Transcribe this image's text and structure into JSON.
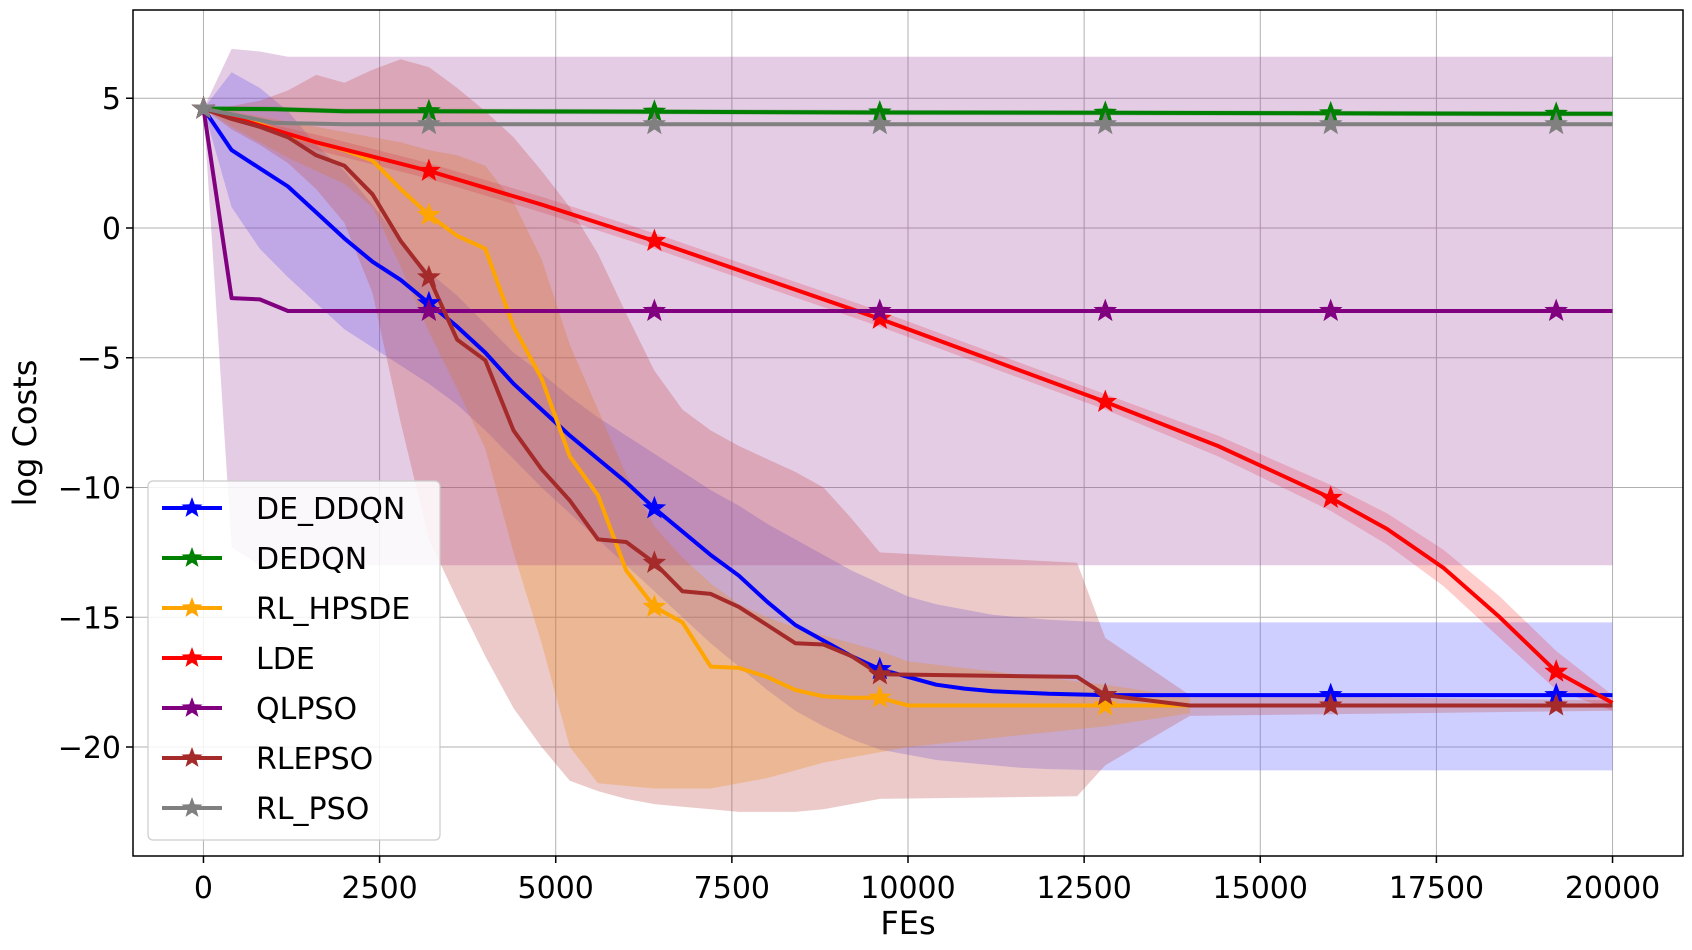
{
  "chart_data": {
    "type": "line",
    "title": "",
    "xlabel": "FEs",
    "ylabel": "log Costs",
    "xlim": [
      -1000,
      21000
    ],
    "ylim": [
      -24.2,
      8.4
    ],
    "xticks": [
      0,
      2500,
      5000,
      7500,
      10000,
      12500,
      15000,
      17500,
      20000
    ],
    "xtick_labels": [
      "0",
      "2500",
      "5000",
      "7500",
      "10000",
      "12500",
      "15000",
      "17500",
      "20000"
    ],
    "yticks": [
      5,
      0,
      -5,
      -10,
      -15,
      -20
    ],
    "ytick_labels": [
      "5",
      "0",
      "−5",
      "−10",
      "−15",
      "−20"
    ],
    "grid": true,
    "legend_position": "lower-left",
    "marker_x": [
      0,
      3200,
      6400,
      9600,
      12800,
      16000,
      19200
    ],
    "series": [
      {
        "name": "DE_DDQN",
        "color": "#0000ff",
        "band_color": "#6666ff",
        "band_opacity": 0.32,
        "x": [
          0,
          400,
          800,
          1200,
          1600,
          2000,
          2400,
          2800,
          3200,
          3600,
          4000,
          4400,
          4800,
          5200,
          5600,
          6000,
          6400,
          6800,
          7200,
          7600,
          8000,
          8400,
          8800,
          9200,
          9600,
          10000,
          10400,
          10800,
          11200,
          11600,
          12000,
          12800,
          16000,
          19200,
          20000
        ],
        "y": [
          4.6,
          3.0,
          2.3,
          1.6,
          0.6,
          -0.4,
          -1.3,
          -2.0,
          -2.9,
          -3.8,
          -4.8,
          -6.0,
          -7.0,
          -8.0,
          -8.9,
          -9.8,
          -10.8,
          -11.7,
          -12.6,
          -13.4,
          -14.4,
          -15.3,
          -15.9,
          -16.5,
          -17.0,
          -17.3,
          -17.6,
          -17.75,
          -17.85,
          -17.9,
          -17.95,
          -18.0,
          -18.0,
          -18.0,
          -18.0
        ],
        "upper": [
          4.6,
          6.0,
          5.4,
          4.5,
          3.2,
          2.2,
          0.9,
          -0.5,
          -1.7,
          -2.6,
          -3.7,
          -4.8,
          -5.6,
          -6.5,
          -7.3,
          -8.0,
          -8.7,
          -9.4,
          -10.1,
          -10.7,
          -11.4,
          -12.0,
          -12.6,
          -13.2,
          -13.7,
          -14.2,
          -14.5,
          -14.7,
          -14.9,
          -15.0,
          -15.1,
          -15.2,
          -15.2,
          -15.2,
          -15.2
        ],
        "lower": [
          4.6,
          0.8,
          -0.8,
          -1.9,
          -2.9,
          -3.9,
          -4.6,
          -5.3,
          -6.0,
          -6.8,
          -7.8,
          -8.9,
          -10.0,
          -11.0,
          -12.0,
          -13.0,
          -14.0,
          -15.0,
          -16.0,
          -16.9,
          -17.8,
          -18.6,
          -19.2,
          -19.7,
          -20.1,
          -20.3,
          -20.5,
          -20.6,
          -20.7,
          -20.8,
          -20.85,
          -20.9,
          -20.9,
          -20.9,
          -20.9
        ]
      },
      {
        "name": "DEDQN",
        "color": "#008000",
        "band_color": "#008000",
        "band_opacity": 0.25,
        "x": [
          0,
          1000,
          2000,
          3200,
          6400,
          9600,
          12800,
          16000,
          19200,
          20000
        ],
        "y": [
          4.6,
          4.58,
          4.5,
          4.5,
          4.48,
          4.45,
          4.44,
          4.42,
          4.4,
          4.4
        ],
        "upper": [
          4.7,
          4.68,
          4.6,
          4.6,
          4.58,
          4.55,
          4.54,
          4.52,
          4.5,
          4.5
        ],
        "lower": [
          4.5,
          4.48,
          4.4,
          4.4,
          4.38,
          4.35,
          4.34,
          4.32,
          4.3,
          4.3
        ]
      },
      {
        "name": "RL_HPSDE",
        "color": "#ffa500",
        "band_color": "#ffa500",
        "band_opacity": 0.3,
        "x": [
          0,
          400,
          800,
          1200,
          1600,
          2000,
          2400,
          2800,
          3200,
          3600,
          4000,
          4400,
          4800,
          5200,
          5600,
          6000,
          6400,
          6800,
          7200,
          7600,
          8000,
          8400,
          8800,
          9200,
          9600,
          10000,
          12800,
          14000
        ],
        "y": [
          4.6,
          4.3,
          4.0,
          3.6,
          3.3,
          3.0,
          2.6,
          1.5,
          0.5,
          -0.3,
          -0.8,
          -3.8,
          -5.8,
          -8.8,
          -10.3,
          -13.2,
          -14.6,
          -15.2,
          -16.9,
          -16.95,
          -17.3,
          -17.8,
          -18.05,
          -18.1,
          -18.1,
          -18.4,
          -18.4,
          -18.4
        ],
        "upper": [
          4.6,
          4.5,
          4.3,
          4.1,
          3.9,
          3.7,
          3.5,
          3.3,
          3.0,
          2.8,
          2.4,
          1.0,
          -1.2,
          -4.5,
          -7.0,
          -9.5,
          -11.5,
          -12.7,
          -13.7,
          -14.5,
          -15.0,
          -15.4,
          -15.7,
          -16.0,
          -16.3,
          -16.7,
          -17.6,
          -18.1
        ],
        "lower": [
          4.6,
          3.9,
          3.3,
          2.7,
          2.2,
          1.7,
          0.8,
          -1.5,
          -4.0,
          -6.2,
          -8.5,
          -12.5,
          -16.0,
          -20.0,
          -21.4,
          -21.5,
          -21.6,
          -21.6,
          -21.6,
          -21.4,
          -21.2,
          -20.9,
          -20.6,
          -20.4,
          -20.2,
          -20.0,
          -19.2,
          -18.7
        ]
      },
      {
        "name": "LDE",
        "color": "#ff0000",
        "band_color": "#ff0000",
        "band_opacity": 0.2,
        "x": [
          0,
          1600,
          3200,
          4800,
          6400,
          8000,
          9600,
          11200,
          12800,
          14400,
          16000,
          16800,
          17600,
          18400,
          19200,
          20000
        ],
        "y": [
          4.6,
          3.3,
          2.2,
          0.9,
          -0.5,
          -2.0,
          -3.5,
          -5.1,
          -6.7,
          -8.4,
          -10.4,
          -11.6,
          -13.1,
          -15.0,
          -17.1,
          -18.3
        ],
        "upper": [
          4.6,
          3.6,
          2.5,
          1.2,
          -0.2,
          -1.7,
          -3.2,
          -4.8,
          -6.4,
          -8.0,
          -9.9,
          -11.0,
          -12.4,
          -14.2,
          -16.3,
          -18.0
        ],
        "lower": [
          4.6,
          3.0,
          1.9,
          0.6,
          -0.8,
          -2.3,
          -3.8,
          -5.4,
          -7.0,
          -8.8,
          -10.9,
          -12.2,
          -13.8,
          -15.8,
          -17.8,
          -18.6
        ]
      },
      {
        "name": "QLPSO",
        "color": "#800080",
        "band_color": "#993399",
        "band_opacity": 0.25,
        "x": [
          0,
          400,
          800,
          1200,
          3200,
          6400,
          9600,
          12800,
          16000,
          19200,
          20000
        ],
        "y": [
          4.6,
          -2.7,
          -2.75,
          -3.2,
          -3.2,
          -3.2,
          -3.2,
          -3.2,
          -3.2,
          -3.2,
          -3.2
        ],
        "upper": [
          4.6,
          6.9,
          6.8,
          6.6,
          6.6,
          6.6,
          6.6,
          6.6,
          6.6,
          6.6,
          6.6
        ],
        "lower": [
          4.6,
          -12.3,
          -13.0,
          -13.0,
          -13.0,
          -13.0,
          -13.0,
          -13.0,
          -13.0,
          -13.0,
          -13.0
        ]
      },
      {
        "name": "RLEPSO",
        "color": "#a52a2a",
        "band_color": "#c05050",
        "band_opacity": 0.3,
        "x": [
          0,
          400,
          800,
          1200,
          1600,
          2000,
          2400,
          2800,
          3200,
          3600,
          4000,
          4400,
          4800,
          5200,
          5600,
          6000,
          6400,
          6800,
          7200,
          7600,
          8000,
          8400,
          8800,
          9200,
          9600,
          12400,
          12800,
          14000,
          20000
        ],
        "y": [
          4.6,
          4.2,
          3.9,
          3.5,
          2.8,
          2.4,
          1.3,
          -0.5,
          -1.9,
          -4.3,
          -5.1,
          -7.8,
          -9.3,
          -10.5,
          -12.0,
          -12.1,
          -12.9,
          -14.0,
          -14.1,
          -14.6,
          -15.3,
          -16.0,
          -16.05,
          -16.5,
          -17.2,
          -17.3,
          -18.0,
          -18.4,
          -18.4
        ],
        "upper": [
          4.6,
          4.7,
          4.9,
          5.3,
          5.9,
          5.6,
          6.1,
          6.5,
          6.2,
          5.4,
          4.5,
          3.5,
          2.2,
          0.8,
          -1.0,
          -3.3,
          -5.5,
          -7.0,
          -7.8,
          -8.4,
          -8.9,
          -9.4,
          -10.0,
          -11.2,
          -12.5,
          -12.9,
          -15.8,
          -18.0,
          -18.2
        ],
        "lower": [
          4.6,
          3.8,
          3.2,
          2.5,
          1.5,
          0.2,
          -2.5,
          -7.5,
          -12.0,
          -14.3,
          -16.5,
          -18.5,
          -20.0,
          -21.3,
          -21.7,
          -22.0,
          -22.2,
          -22.3,
          -22.4,
          -22.5,
          -22.5,
          -22.5,
          -22.4,
          -22.2,
          -22.0,
          -21.9,
          -20.7,
          -18.8,
          -18.6
        ]
      },
      {
        "name": "RL_PSO",
        "color": "#808080",
        "band_color": "#808080",
        "band_opacity": 0.25,
        "x": [
          0,
          1000,
          2000,
          3200,
          6400,
          9600,
          12800,
          16000,
          19200,
          20000
        ],
        "y": [
          4.6,
          4.05,
          4.0,
          4.0,
          4.0,
          4.0,
          4.0,
          4.0,
          4.0,
          4.0
        ],
        "upper": [
          4.65,
          4.12,
          4.07,
          4.07,
          4.07,
          4.07,
          4.07,
          4.07,
          4.07,
          4.07
        ],
        "lower": [
          4.55,
          3.98,
          3.93,
          3.93,
          3.93,
          3.93,
          3.93,
          3.93,
          3.93,
          3.93
        ]
      }
    ]
  }
}
